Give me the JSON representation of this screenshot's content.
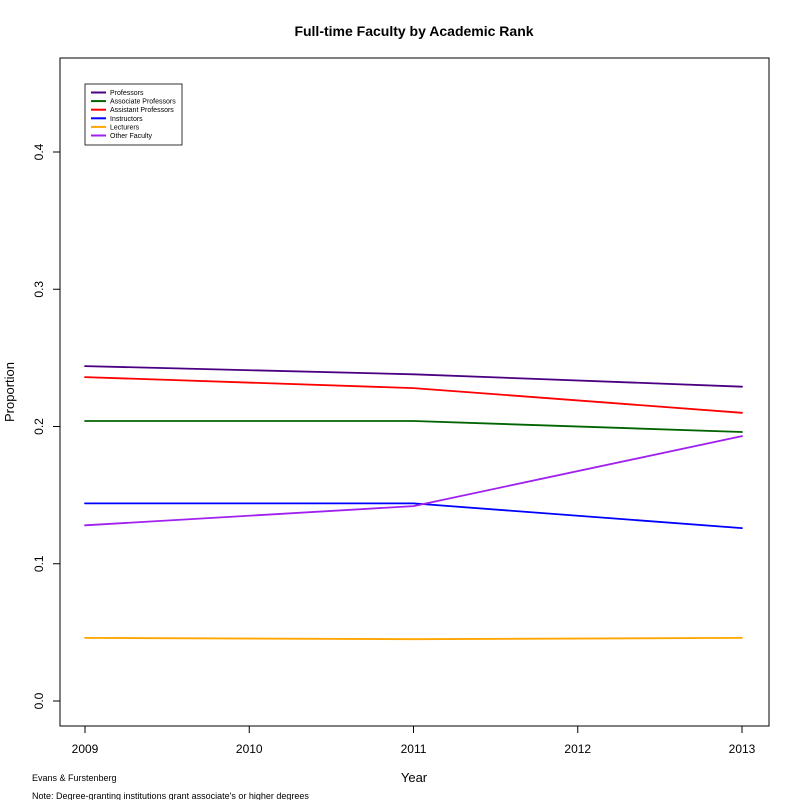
{
  "chart_data": {
    "type": "line",
    "title": "Full-time Faculty by Academic Rank",
    "xlabel": "Year",
    "ylabel": "Proportion",
    "x": [
      2009,
      2011,
      2013
    ],
    "x_ticks": [
      2009,
      2010,
      2011,
      2012,
      2013
    ],
    "x_tick_labels": [
      "2009",
      "2010",
      "2011",
      "2012",
      "2013"
    ],
    "y_ticks": [
      0.0,
      0.1,
      0.2,
      0.3,
      0.4
    ],
    "y_tick_labels": [
      "0.0",
      "0.1",
      "0.2",
      "0.3",
      "0.4"
    ],
    "xlim": [
      2009,
      2013
    ],
    "ylim": [
      0.0,
      0.45
    ],
    "grid": false,
    "legend_position": "top-left",
    "series": [
      {
        "name": "Professors",
        "color": "#4b0082",
        "values": [
          0.244,
          0.238,
          0.229
        ]
      },
      {
        "name": "Associate Professors",
        "color": "#006400",
        "values": [
          0.204,
          0.204,
          0.196
        ]
      },
      {
        "name": "Assistant Professors",
        "color": "#ff0000",
        "values": [
          0.236,
          0.228,
          0.21
        ]
      },
      {
        "name": "Instructors",
        "color": "#0000ff",
        "values": [
          0.144,
          0.144,
          0.126
        ]
      },
      {
        "name": "Lecturers",
        "color": "#ffa500",
        "values": [
          0.046,
          0.045,
          0.046
        ]
      },
      {
        "name": "Other Faculty",
        "color": "#a020f0",
        "values": [
          0.128,
          0.142,
          0.193
        ]
      }
    ]
  },
  "notes": {
    "credit": "Evans & Furstenberg",
    "note": "Note: Degree-granting institutions grant associate's or higher degrees"
  }
}
